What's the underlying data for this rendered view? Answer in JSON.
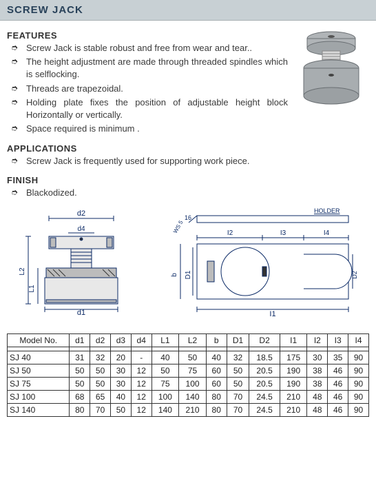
{
  "title": "SCREW JACK",
  "sections": {
    "features_heading": "FEATURES",
    "applications_heading": "APPLICATIONS",
    "finish_heading": "FINISH"
  },
  "features": [
    "Screw Jack is stable robust and free from wear and tear..",
    "The height adjustment are made through threaded spindles which is selflocking.",
    "Threads are trapezoidal.",
    "Holding plate fixes the position of adjustable height block Horizontally or vertically.",
    "Space required is minimum ."
  ],
  "applications": [
    "Screw Jack is frequently used for supporting work piece."
  ],
  "finish": [
    "Blackodized."
  ],
  "diagram": {
    "labels": {
      "d1": "d1",
      "d2": "d2",
      "d4": "d4",
      "L1": "L1",
      "L2": "L2",
      "b": "b",
      "D1": "D1",
      "D2": "D2",
      "I1": "I1",
      "I2": "I2",
      "I3": "I3",
      "I4": "I4",
      "ws5": "WS 5",
      "t6": "16",
      "holder": "HOLDER"
    },
    "colors": {
      "line": "#0b2a66",
      "fill_light": "#e8e8e8",
      "fill_dark": "#bcbcbc",
      "hatch": "#333"
    }
  },
  "table": {
    "columns": [
      "Model No.",
      "d1",
      "d2",
      "d3",
      "d4",
      "L1",
      "L2",
      "b",
      "D1",
      "D2",
      "I1",
      "I2",
      "I3",
      "I4"
    ],
    "rows": [
      [
        "SJ 40",
        "31",
        "32",
        "20",
        "-",
        "40",
        "50",
        "40",
        "32",
        "18.5",
        "175",
        "30",
        "35",
        "90"
      ],
      [
        "SJ 50",
        "50",
        "50",
        "30",
        "12",
        "50",
        "75",
        "60",
        "50",
        "20.5",
        "190",
        "38",
        "46",
        "90"
      ],
      [
        "SJ 75",
        "50",
        "50",
        "30",
        "12",
        "75",
        "100",
        "60",
        "50",
        "20.5",
        "190",
        "38",
        "46",
        "90"
      ],
      [
        "SJ 100",
        "68",
        "65",
        "40",
        "12",
        "100",
        "140",
        "80",
        "70",
        "24.5",
        "210",
        "48",
        "46",
        "90"
      ],
      [
        "SJ 140",
        "80",
        "70",
        "50",
        "12",
        "140",
        "210",
        "80",
        "70",
        "24.5",
        "210",
        "48",
        "46",
        "90"
      ]
    ]
  },
  "photo": {
    "top_fill": "#b0b4b7",
    "shaft_fill": "#d9d9d9",
    "base_fill": "#a8adb0",
    "stroke": "#6a6f73"
  }
}
